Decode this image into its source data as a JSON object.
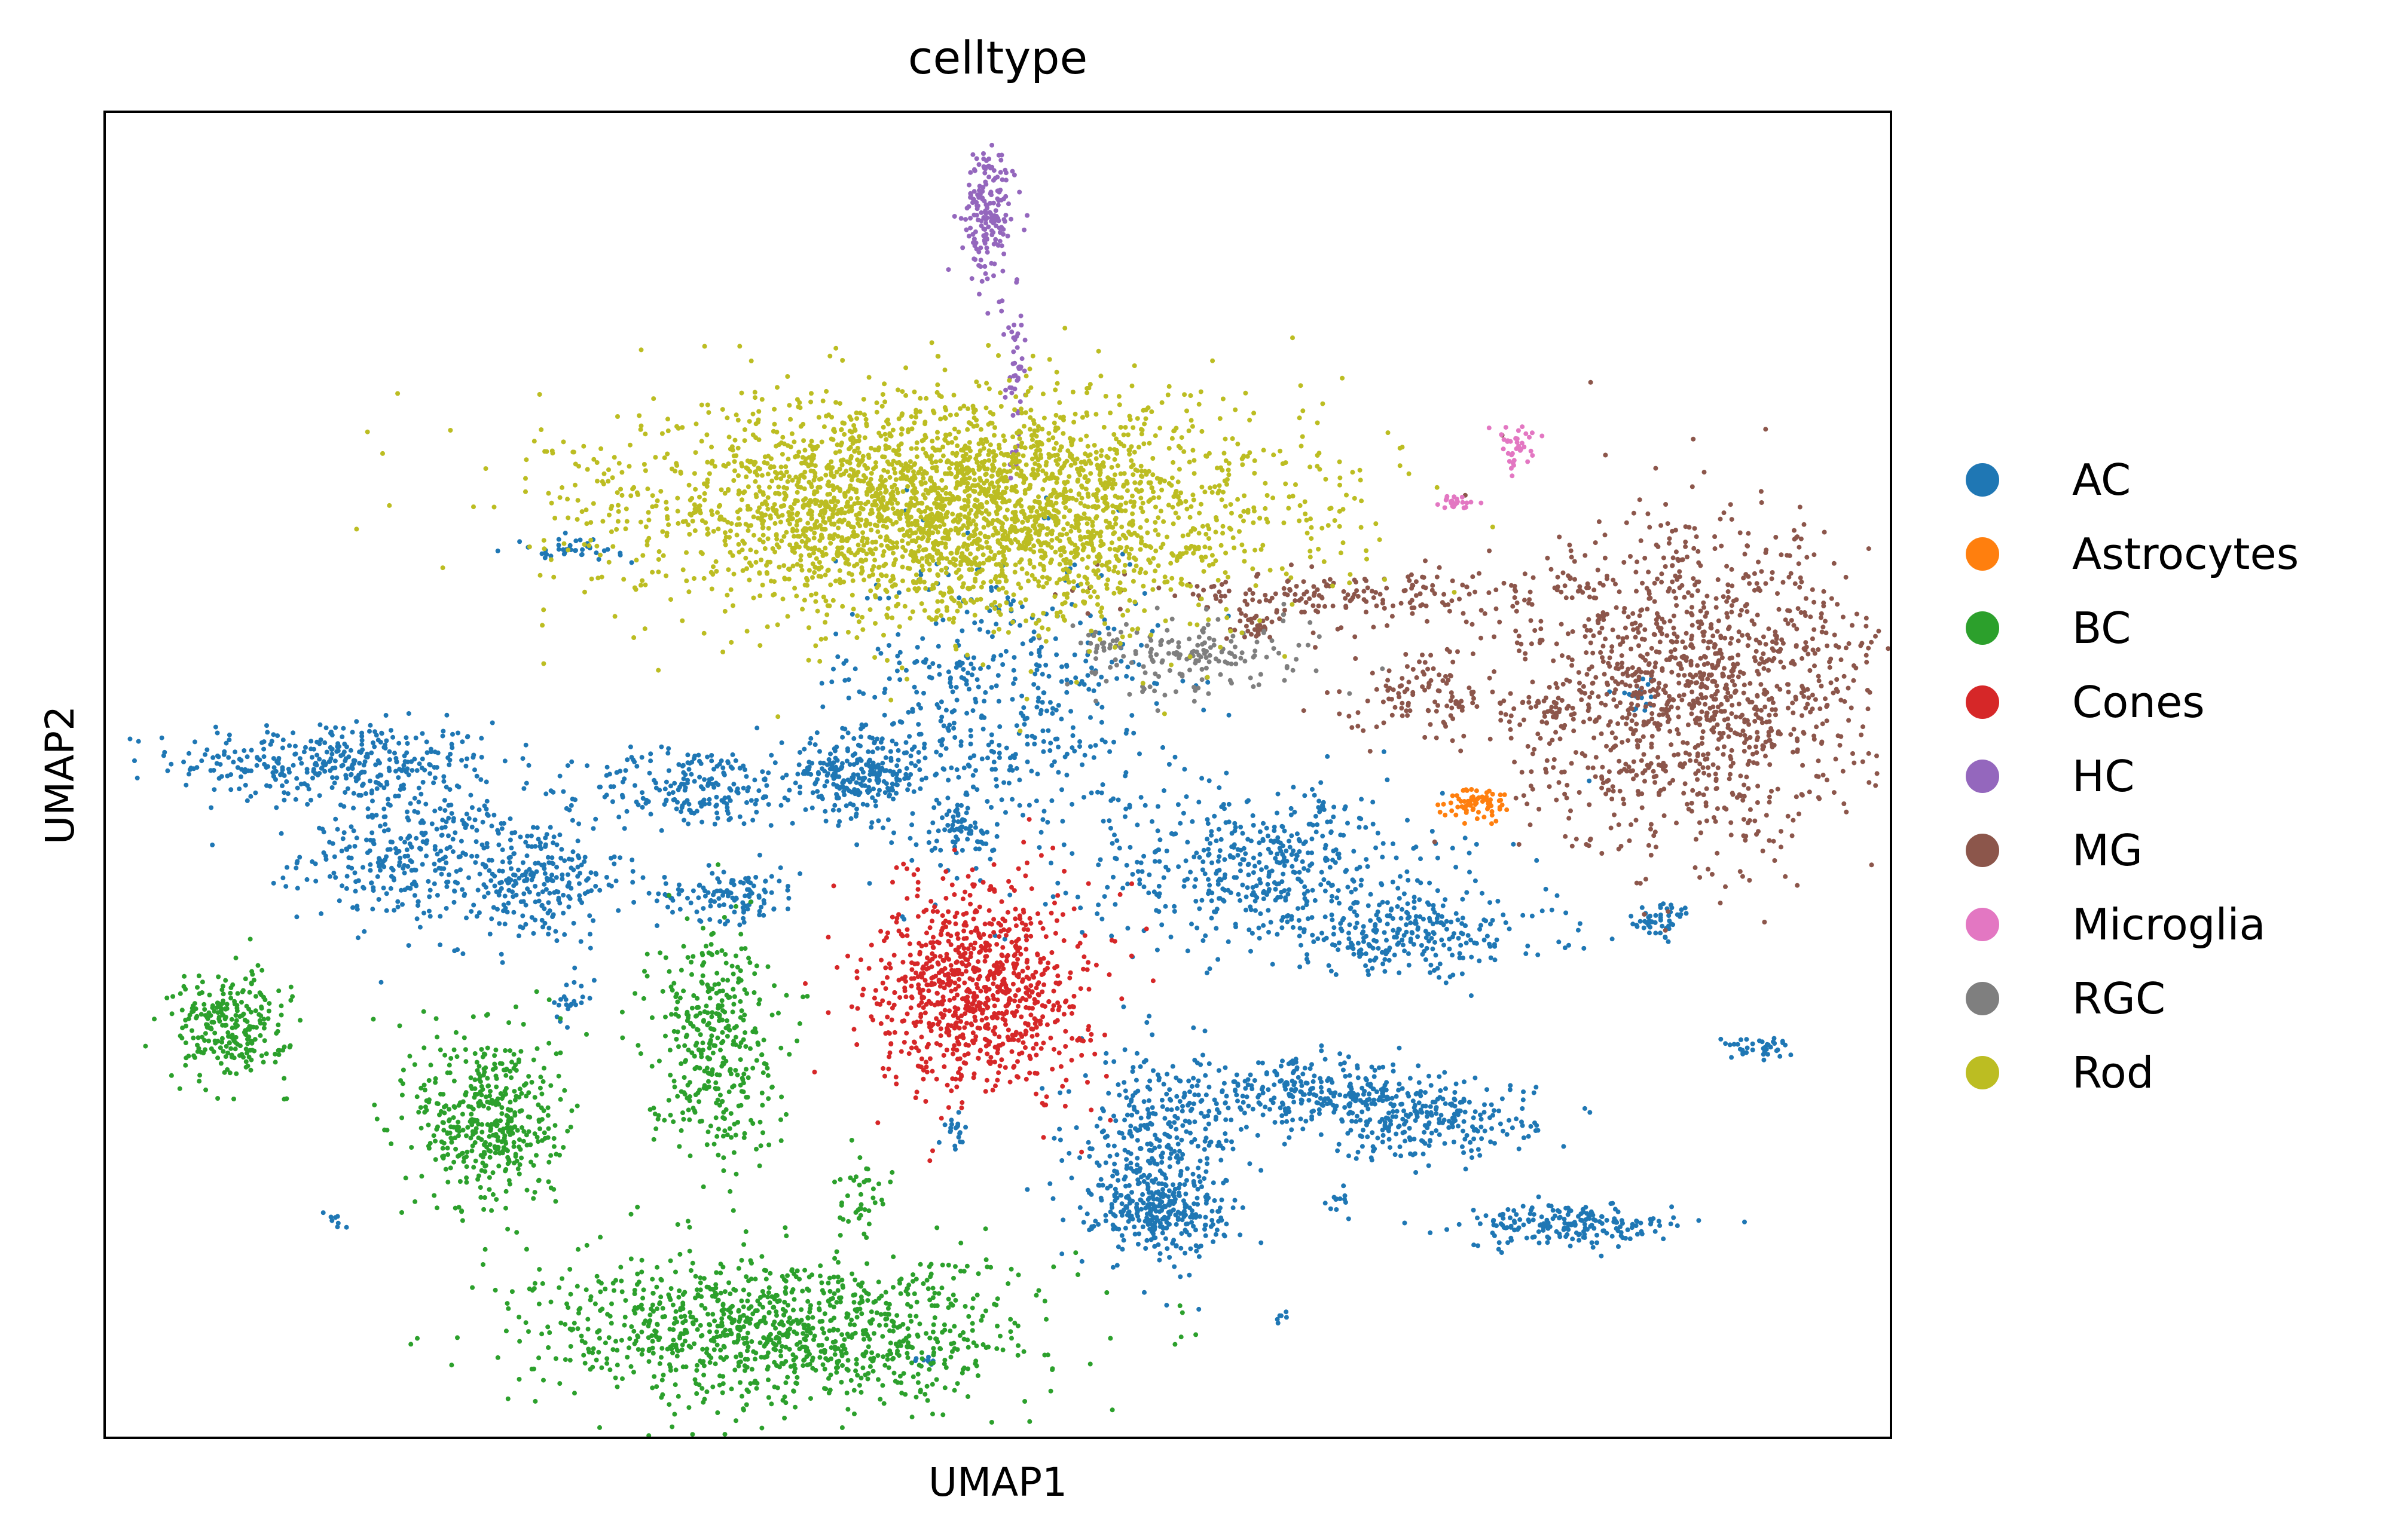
{
  "chart_data": {
    "type": "scatter",
    "title": "celltype",
    "xlabel": "UMAP1",
    "ylabel": "UMAP2",
    "xlim": [
      0,
      100
    ],
    "ylim": [
      0,
      100
    ],
    "grid": false,
    "legend_position": "right",
    "series": [
      {
        "name": "AC",
        "color": "#1f77b4",
        "clusters": [
          {
            "cx": 13,
            "cy": 51,
            "sx": 4.5,
            "sy": 1.5,
            "n": 360
          },
          {
            "cx": 17,
            "cy": 44,
            "sx": 3,
            "sy": 2.5,
            "n": 300
          },
          {
            "cx": 24,
            "cy": 42,
            "sx": 2.5,
            "sy": 2.5,
            "n": 260
          },
          {
            "cx": 33,
            "cy": 49,
            "sx": 3,
            "sy": 1.5,
            "n": 200
          },
          {
            "cx": 35,
            "cy": 41,
            "sx": 2,
            "sy": 1,
            "n": 120
          },
          {
            "cx": 42,
            "cy": 50,
            "sx": 2,
            "sy": 1.5,
            "n": 250
          },
          {
            "cx": 50,
            "cy": 55,
            "sx": 4.5,
            "sy": 6,
            "n": 520
          },
          {
            "cx": 48,
            "cy": 46,
            "sx": 1,
            "sy": 1,
            "n": 60
          },
          {
            "cx": 65,
            "cy": 43,
            "sx": 5,
            "sy": 3,
            "n": 480
          },
          {
            "cx": 73,
            "cy": 38,
            "sx": 4,
            "sy": 1.5,
            "n": 260
          },
          {
            "cx": 67,
            "cy": 26,
            "sx": 3,
            "sy": 1.2,
            "n": 240
          },
          {
            "cx": 59,
            "cy": 22,
            "sx": 2.2,
            "sy": 3.5,
            "n": 360
          },
          {
            "cx": 59,
            "cy": 17,
            "sx": 1.8,
            "sy": 1.5,
            "n": 240
          },
          {
            "cx": 74,
            "cy": 24,
            "sx": 3,
            "sy": 1.5,
            "n": 280
          },
          {
            "cx": 82,
            "cy": 16,
            "sx": 3,
            "sy": 0.8,
            "n": 200
          },
          {
            "cx": 87,
            "cy": 39,
            "sx": 1,
            "sy": 0.7,
            "n": 50
          },
          {
            "cx": 92.5,
            "cy": 29.5,
            "sx": 1,
            "sy": 0.4,
            "n": 40
          },
          {
            "cx": 26,
            "cy": 67,
            "sx": 1.5,
            "sy": 0.4,
            "n": 40
          },
          {
            "cx": 13,
            "cy": 16.5,
            "sx": 0.3,
            "sy": 0.3,
            "n": 8
          },
          {
            "cx": 47.5,
            "cy": 23,
            "sx": 0.4,
            "sy": 0.6,
            "n": 20
          },
          {
            "cx": 66,
            "cy": 9,
            "sx": 0.2,
            "sy": 0.2,
            "n": 6
          },
          {
            "cx": 46,
            "cy": 6,
            "sx": 0.4,
            "sy": 0.3,
            "n": 8
          },
          {
            "cx": 26,
            "cy": 33,
            "sx": 0.5,
            "sy": 0.8,
            "n": 20
          },
          {
            "cx": 69,
            "cy": 18,
            "sx": 0.4,
            "sy": 0.5,
            "n": 12
          },
          {
            "cx": 86,
            "cy": 56,
            "sx": 0.6,
            "sy": 0.8,
            "n": 18
          }
        ]
      },
      {
        "name": "Astrocytes",
        "color": "#ff7f0e",
        "clusters": [
          {
            "cx": 77,
            "cy": 48,
            "sx": 1,
            "sy": 0.6,
            "n": 70
          }
        ]
      },
      {
        "name": "BC",
        "color": "#2ca02c",
        "clusters": [
          {
            "cx": 7,
            "cy": 31,
            "sx": 1.6,
            "sy": 2,
            "n": 260
          },
          {
            "cx": 21.5,
            "cy": 24,
            "sx": 2,
            "sy": 3.5,
            "n": 460
          },
          {
            "cx": 34,
            "cy": 30,
            "sx": 1.8,
            "sy": 4.5,
            "n": 380
          },
          {
            "cx": 38,
            "cy": 8,
            "sx": 7,
            "sy": 2.8,
            "n": 1100
          },
          {
            "cx": 42.5,
            "cy": 18,
            "sx": 0.8,
            "sy": 1.5,
            "n": 40
          }
        ]
      },
      {
        "name": "Cones",
        "color": "#d62728",
        "clusters": [
          {
            "cx": 49,
            "cy": 34,
            "sx": 3,
            "sy": 4,
            "n": 900
          }
        ]
      },
      {
        "name": "HC",
        "color": "#9467bd",
        "clusters": [
          {
            "cx": 49.5,
            "cy": 92,
            "sx": 0.7,
            "sy": 2.5,
            "n": 180
          },
          {
            "cx": 51,
            "cy": 81,
            "sx": 0.3,
            "sy": 3.5,
            "n": 50
          }
        ]
      },
      {
        "name": "MG",
        "color": "#8c564b",
        "clusters": [
          {
            "cx": 89,
            "cy": 56.5,
            "sx": 5,
            "sy": 6,
            "n": 1300
          },
          {
            "cx": 70,
            "cy": 63.5,
            "sx": 6,
            "sy": 1,
            "n": 200
          },
          {
            "cx": 74,
            "cy": 56,
            "sx": 2.2,
            "sy": 1.8,
            "n": 120
          },
          {
            "cx": 64.5,
            "cy": 61,
            "sx": 0.8,
            "sy": 0.5,
            "n": 30
          },
          {
            "cx": 81,
            "cy": 55,
            "sx": 0.7,
            "sy": 0.7,
            "n": 30
          }
        ]
      },
      {
        "name": "Microglia",
        "color": "#e377c2",
        "clusters": [
          {
            "cx": 79,
            "cy": 75,
            "sx": 0.5,
            "sy": 0.8,
            "n": 35
          },
          {
            "cx": 75.5,
            "cy": 70.5,
            "sx": 0.6,
            "sy": 0.3,
            "n": 25
          }
        ]
      },
      {
        "name": "RGC",
        "color": "#7f7f7f",
        "clusters": [
          {
            "cx": 61,
            "cy": 59,
            "sx": 3.5,
            "sy": 1.5,
            "n": 180
          }
        ]
      },
      {
        "name": "Rod",
        "color": "#bcbd22",
        "clusters": [
          {
            "cx": 47.5,
            "cy": 70,
            "sx": 9,
            "sy": 4.2,
            "n": 3200
          }
        ]
      }
    ]
  }
}
